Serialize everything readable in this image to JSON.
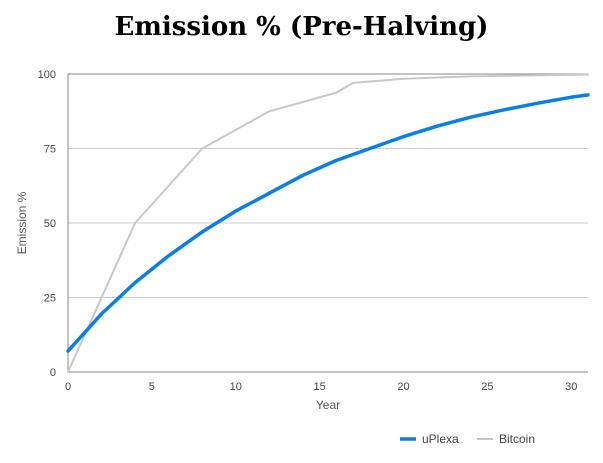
{
  "chart_data": {
    "type": "line",
    "title": "Emission % (Pre-Halving)",
    "xlabel": "Year",
    "ylabel": "Emission %",
    "xlim": [
      0,
      31
    ],
    "ylim": [
      0,
      100
    ],
    "x_ticks": [
      0,
      5,
      10,
      15,
      20,
      25,
      30
    ],
    "y_ticks": [
      0,
      25,
      50,
      75,
      100
    ],
    "grid": true,
    "legend_position": "bottom-right",
    "series": [
      {
        "name": "uPlexa",
        "color": "#0a7ee8",
        "x": [
          0,
          2,
          4,
          6,
          8,
          10,
          12,
          14,
          16,
          18,
          20,
          22,
          24,
          26,
          28,
          30,
          31
        ],
        "y": [
          7,
          19.5,
          30,
          39,
          47,
          54,
          60,
          66,
          71,
          75,
          79,
          82.5,
          85.5,
          88,
          90.2,
          92.2,
          93
        ]
      },
      {
        "name": "Bitcoin",
        "color": "#c8c8c8",
        "x": [
          0,
          4,
          8,
          12,
          16,
          17,
          20,
          24,
          28,
          31
        ],
        "y": [
          0,
          50,
          75,
          87.5,
          93.75,
          97,
          98.4,
          99.2,
          99.6,
          99.8
        ]
      }
    ]
  }
}
